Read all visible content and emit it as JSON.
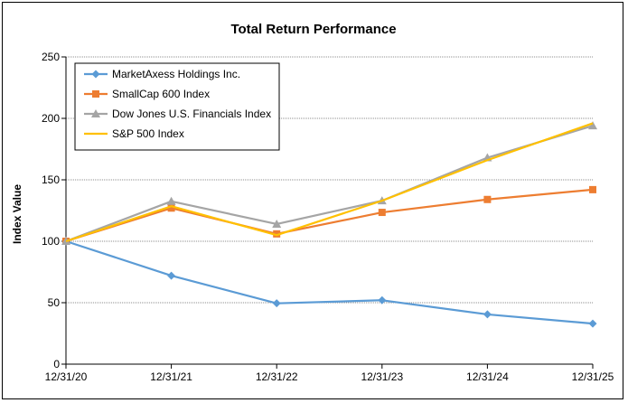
{
  "chart_data": {
    "type": "line",
    "title": "Total Return Performance",
    "xlabel": "",
    "ylabel": "Index Value",
    "categories": [
      "12/31/20",
      "12/31/21",
      "12/31/22",
      "12/31/23",
      "12/31/24",
      "12/31/25"
    ],
    "ylim": [
      0,
      250
    ],
    "yticks": [
      0,
      50,
      100,
      150,
      200,
      250
    ],
    "grid": "horizontal",
    "legend_position": "top-left",
    "series": [
      {
        "name": "MarketAxess Holdings Inc.",
        "color": "#5b9bd5",
        "marker": "diamond",
        "values": [
          100,
          72,
          49.5,
          52,
          40.5,
          33
        ]
      },
      {
        "name": "SmallCap 600 Index",
        "color": "#ed7d31",
        "marker": "square",
        "values": [
          100,
          127,
          106,
          123.5,
          134,
          142
        ]
      },
      {
        "name": "Dow Jones U.S. Financials Index",
        "color": "#a5a5a5",
        "marker": "triangle",
        "values": [
          100,
          132.5,
          114,
          133,
          168,
          194
        ]
      },
      {
        "name": "S&P 500 Index",
        "color": "#ffc000",
        "marker": "none",
        "values": [
          100,
          128.5,
          105,
          133,
          166,
          196
        ]
      }
    ]
  }
}
